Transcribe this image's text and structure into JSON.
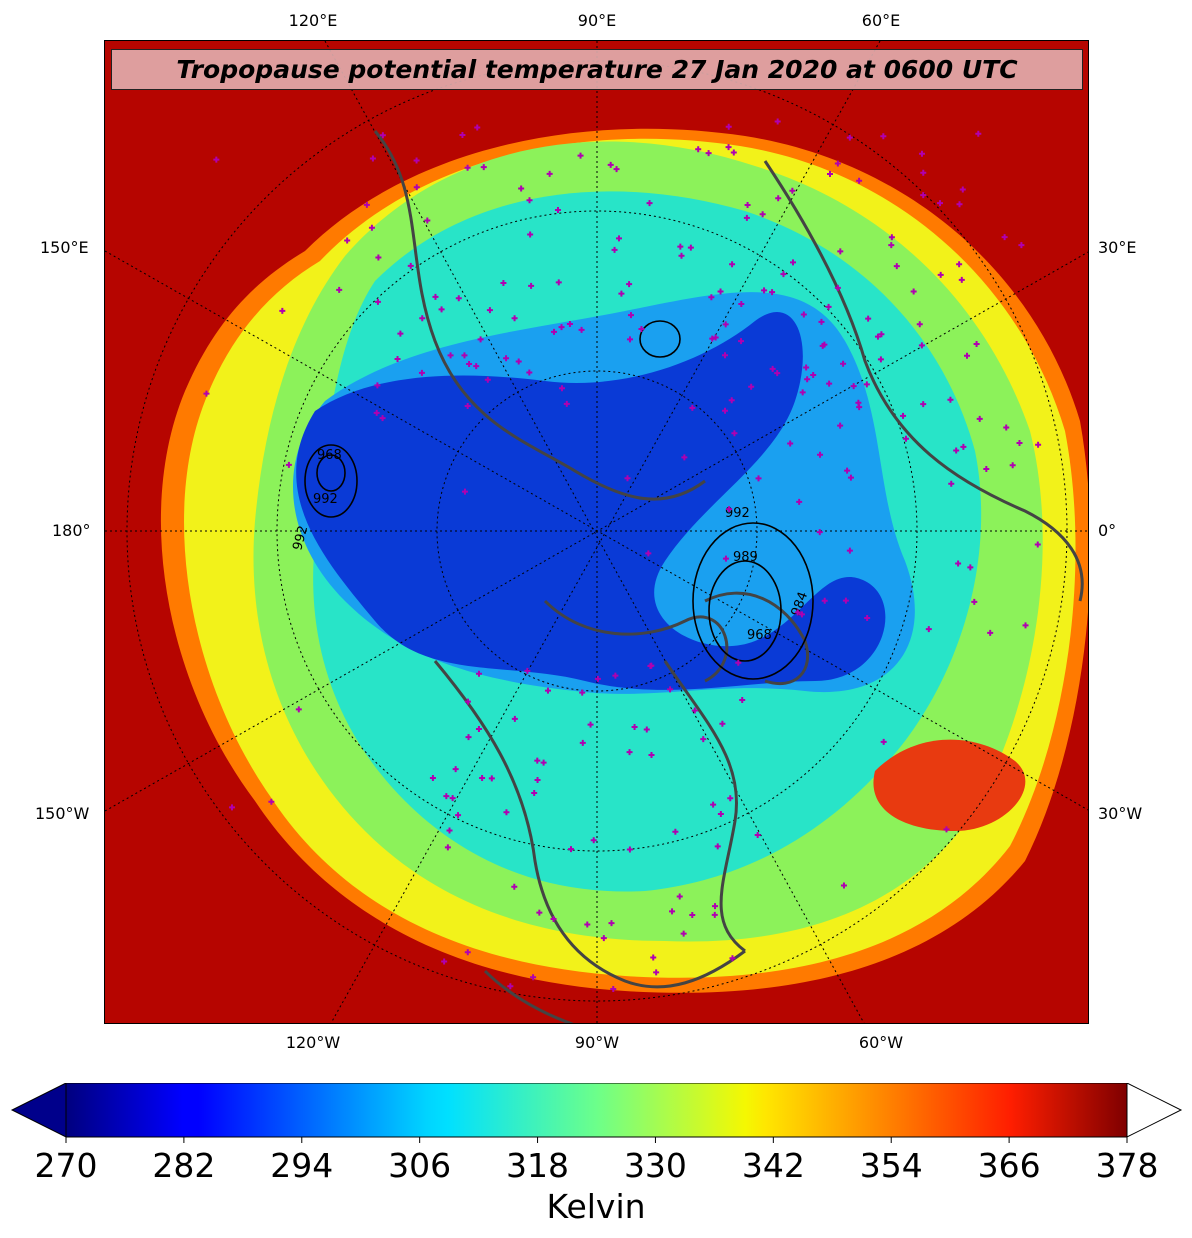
{
  "title": "Tropopause potential temperature 27 Jan 2020 at 0600 UTC",
  "map": {
    "top_lon_labels": [
      "120°E",
      "90°E",
      "60°E"
    ],
    "bottom_lon_labels": [
      "120°W",
      "90°W",
      "60°W"
    ],
    "left_labels": [
      "150°E",
      "180°",
      "150°W"
    ],
    "right_labels": [
      "30°E",
      "0°",
      "30°W"
    ],
    "pressure_contour_labels": [
      "992",
      "992",
      "989",
      "984",
      "968",
      "968",
      "992"
    ]
  },
  "colorbar": {
    "units": "Kelvin",
    "ticks": [
      "270",
      "282",
      "294",
      "306",
      "318",
      "330",
      "342",
      "354",
      "366",
      "378"
    ],
    "min": 270,
    "max": 378,
    "colormap": "jet",
    "extend_low_color": "#00008b",
    "extend_high_color": "#ffffff"
  },
  "colors": {
    "coastline": "#444444",
    "station_marker": "#b000b0",
    "gridline": "#000000"
  }
}
